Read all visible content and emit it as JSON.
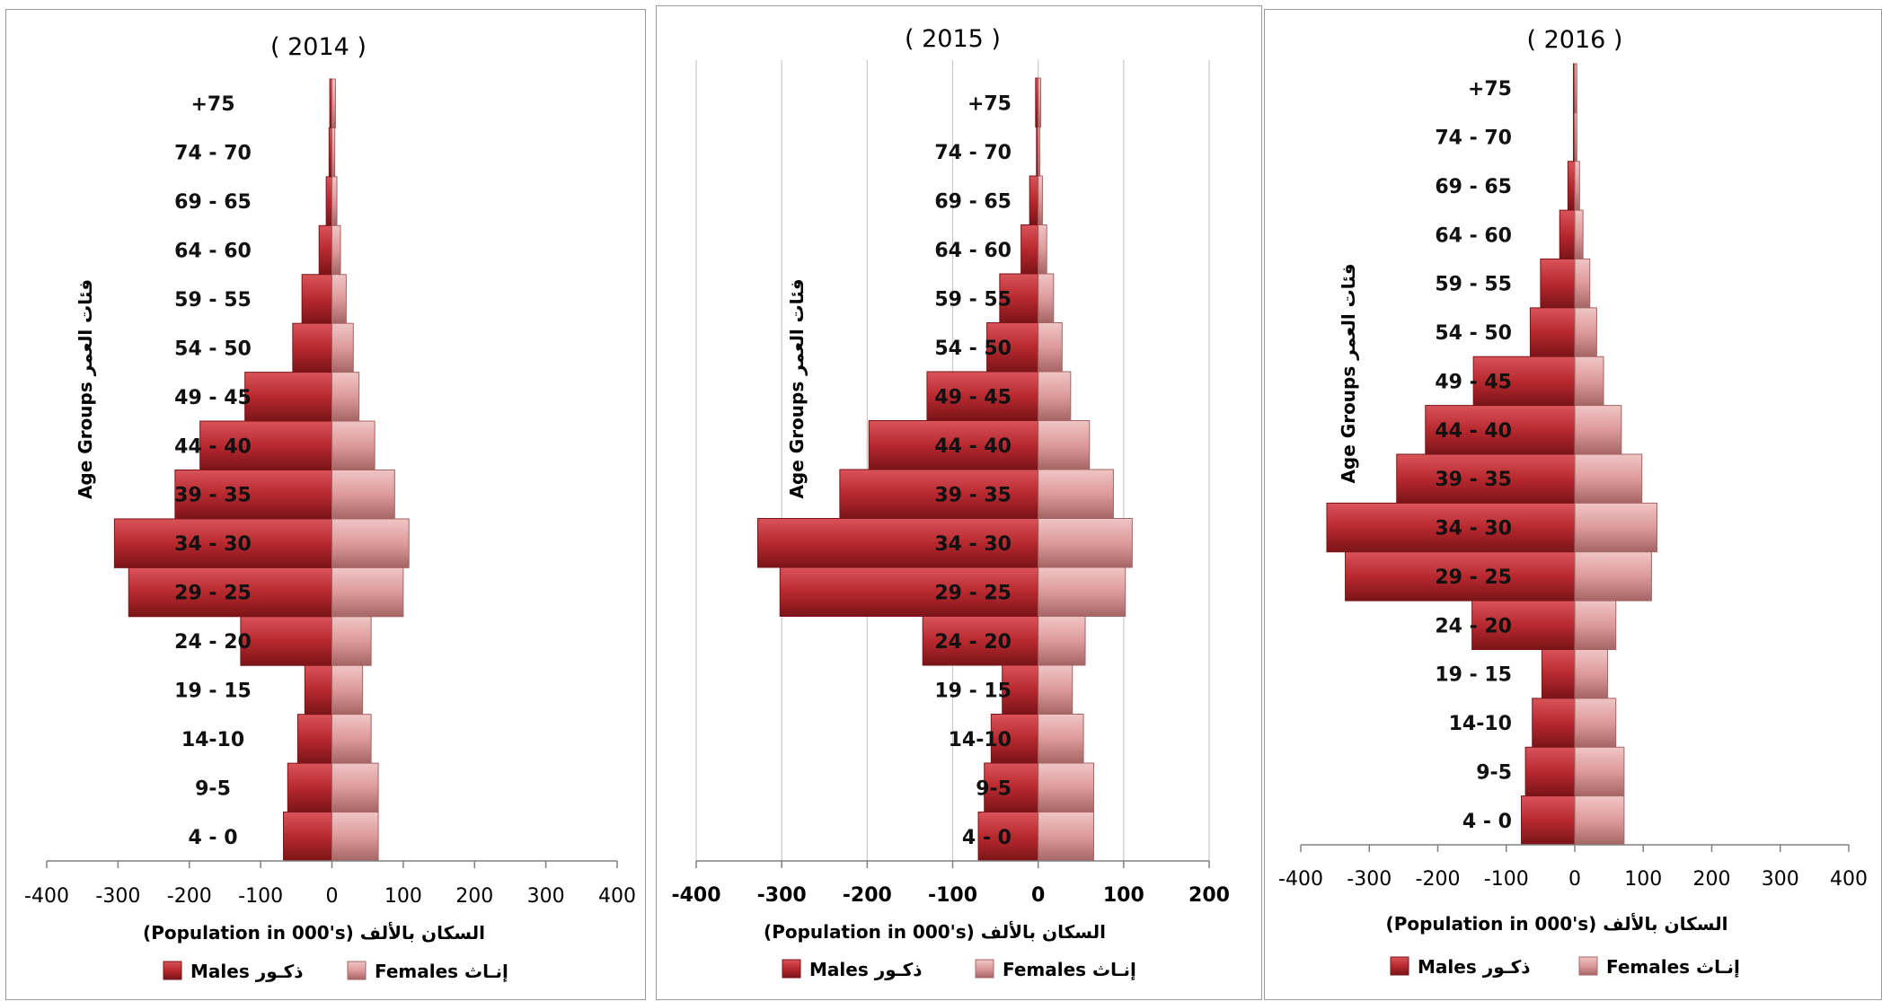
{
  "colors": {
    "male_fill": "#b8292f",
    "male_light": "#d9545a",
    "male_edge": "#7a1418",
    "female_fill": "#dd9a9a",
    "female_light": "#f0c5c5",
    "female_edge": "#a56565",
    "axis": "#808080",
    "grid": "#c8c8c8"
  },
  "chart_data": [
    {
      "type": "bar",
      "title": "( 2014 )",
      "ylabel": "Age Groups فئات العمر",
      "xlabel": "(Population in 000's)  السكان بالألف",
      "xlim": [
        -400,
        400
      ],
      "xticks": [
        "-400",
        "-300",
        "-200",
        "-100",
        "0",
        "100",
        "200",
        "300",
        "400"
      ],
      "grid": false,
      "legend_position": "bottom",
      "categories": [
        "+75",
        "74 - 70",
        "69 - 65",
        "64 - 60",
        "59 - 55",
        "54 - 50",
        "49 - 45",
        "44 - 40",
        "39 - 35",
        "34 - 30",
        "29 - 25",
        "24 - 20",
        "19 - 15",
        "14-10",
        "9-5",
        "4 - 0"
      ],
      "series": [
        {
          "name": "Males  ذكـور",
          "values": [
            -3,
            -4,
            -8,
            -18,
            -42,
            -55,
            -122,
            -185,
            -220,
            -305,
            -285,
            -128,
            -38,
            -48,
            -62,
            -68
          ]
        },
        {
          "name": "Females  إنـاث",
          "values": [
            5,
            4,
            7,
            12,
            20,
            30,
            38,
            60,
            88,
            108,
            100,
            55,
            43,
            55,
            65,
            65
          ]
        }
      ]
    },
    {
      "type": "bar",
      "title": "( 2015 )",
      "ylabel": "Age Groups فئات العمر",
      "xlabel": "(Population in 000's)  السكان بالألف",
      "xlim": [
        -400,
        200
      ],
      "xticks": [
        "-400",
        "-300",
        "-200",
        "-100",
        "0",
        "100",
        "200"
      ],
      "grid": true,
      "legend_position": "bottom",
      "categories": [
        "+75",
        "74 - 70",
        "69 - 65",
        "64 - 60",
        "59 - 55",
        "54 - 50",
        "49 - 45",
        "44 - 40",
        "39 - 35",
        "34 - 30",
        "29 - 25",
        "24 - 20",
        "19 - 15",
        "14-10",
        "9-5",
        "4 - 0"
      ],
      "series": [
        {
          "name": "Males  ذكـور",
          "values": [
            -3,
            -2,
            -10,
            -20,
            -45,
            -60,
            -130,
            -198,
            -232,
            -328,
            -302,
            -135,
            -42,
            -55,
            -63,
            -70
          ]
        },
        {
          "name": "Females  إنـاث",
          "values": [
            3,
            2,
            5,
            10,
            18,
            28,
            38,
            60,
            88,
            110,
            102,
            55,
            40,
            53,
            65,
            65
          ]
        }
      ]
    },
    {
      "type": "bar",
      "title": "( 2016 )",
      "ylabel": "Age Groups فئات العمر",
      "xlabel": "(Population in 000's)  السكان بالألف",
      "xlim": [
        -400,
        400
      ],
      "xticks": [
        "-400",
        "-300",
        "-200",
        "-100",
        "0",
        "100",
        "200",
        "300",
        "400"
      ],
      "grid": false,
      "legend_position": "bottom",
      "categories": [
        "+75",
        "74 - 70",
        "69 - 65",
        "64 - 60",
        "59 - 55",
        "54 - 50",
        "49 - 45",
        "44 - 40",
        "39 - 35",
        "34 - 30",
        "29 - 25",
        "24 - 20",
        "19 - 15",
        "14-10",
        "9-5",
        "4 - 0"
      ],
      "series": [
        {
          "name": "Males  ذكـور",
          "values": [
            -2,
            -2,
            -10,
            -22,
            -50,
            -65,
            -148,
            -218,
            -260,
            -362,
            -335,
            -150,
            -48,
            -62,
            -72,
            -78
          ]
        },
        {
          "name": "Females  إنـاث",
          "values": [
            3,
            3,
            7,
            12,
            22,
            32,
            42,
            68,
            98,
            120,
            112,
            60,
            48,
            60,
            72,
            72
          ]
        }
      ]
    }
  ]
}
